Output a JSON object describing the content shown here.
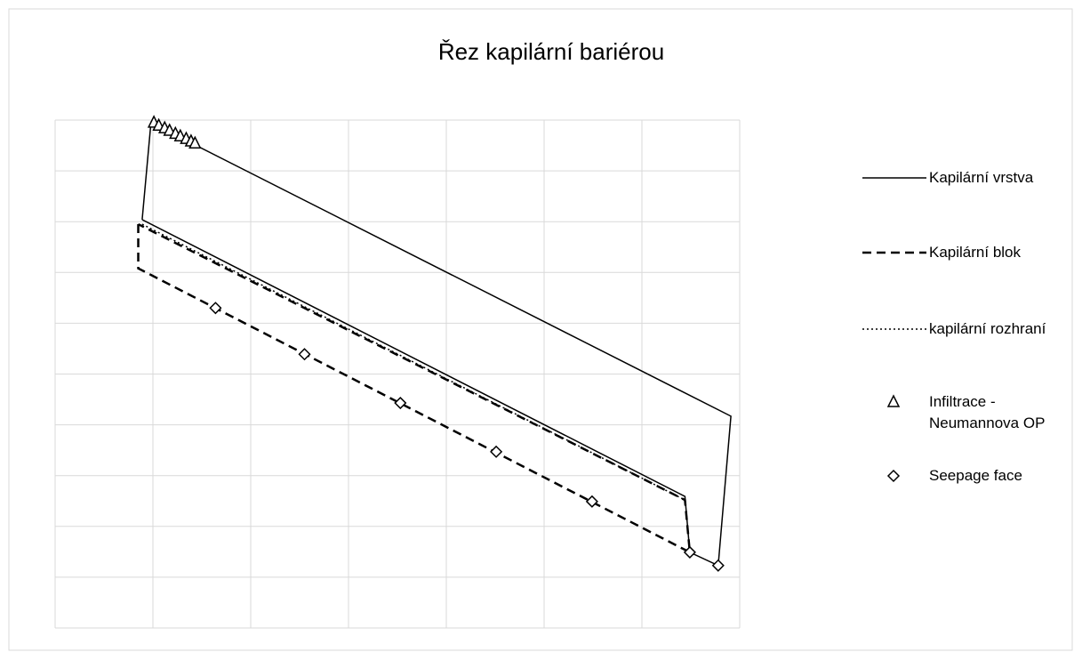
{
  "chart_data": {
    "type": "scatter",
    "title": "Řez kapilární bariérou",
    "xlim": [
      0,
      7
    ],
    "ylim": [
      0,
      10
    ],
    "xticks": [
      0,
      1,
      2,
      3,
      4,
      5,
      6,
      7
    ],
    "yticks": [
      0,
      1,
      2,
      3,
      4,
      5,
      6,
      7,
      8,
      9,
      10
    ],
    "grid": true,
    "legend": "right",
    "series": [
      {
        "name": "Kapilární vrstva",
        "color": "#000000",
        "line_style": "solid",
        "marker": "none",
        "x": [
          0.89,
          0.98,
          6.91,
          6.78,
          6.49,
          6.44,
          0.89
        ],
        "values": [
          8.04,
          9.95,
          4.17,
          1.23,
          1.49,
          2.59,
          8.04
        ]
      },
      {
        "name": "Kapilární blok",
        "color": "#000000",
        "line_style": "dashed",
        "marker": "none",
        "x": [
          0.85,
          0.85,
          6.49,
          6.44,
          0.85
        ],
        "values": [
          7.95,
          7.08,
          1.49,
          2.52,
          7.95
        ]
      },
      {
        "name": "kapilární rozhraní",
        "color": "#000000",
        "line_style": "dotted",
        "marker": "none",
        "x": [
          0.89,
          6.44
        ],
        "values": [
          7.95,
          2.52
        ]
      },
      {
        "name": "Infiltrace - Neumannova OP",
        "color": "#000000",
        "line_style": "none",
        "marker": "triangle",
        "x": [
          1.01,
          1.06,
          1.12,
          1.17,
          1.23,
          1.28,
          1.34,
          1.39,
          1.43
        ],
        "values": [
          9.95,
          9.89,
          9.84,
          9.79,
          9.73,
          9.68,
          9.63,
          9.58,
          9.54
        ]
      },
      {
        "name": "Seepage face",
        "color": "#000000",
        "line_style": "none",
        "marker": "diamond",
        "x": [
          1.64,
          2.55,
          3.53,
          4.51,
          5.49,
          6.49,
          6.78
        ],
        "values": [
          6.3,
          5.39,
          4.43,
          3.47,
          2.49,
          1.49,
          1.23
        ]
      }
    ]
  }
}
